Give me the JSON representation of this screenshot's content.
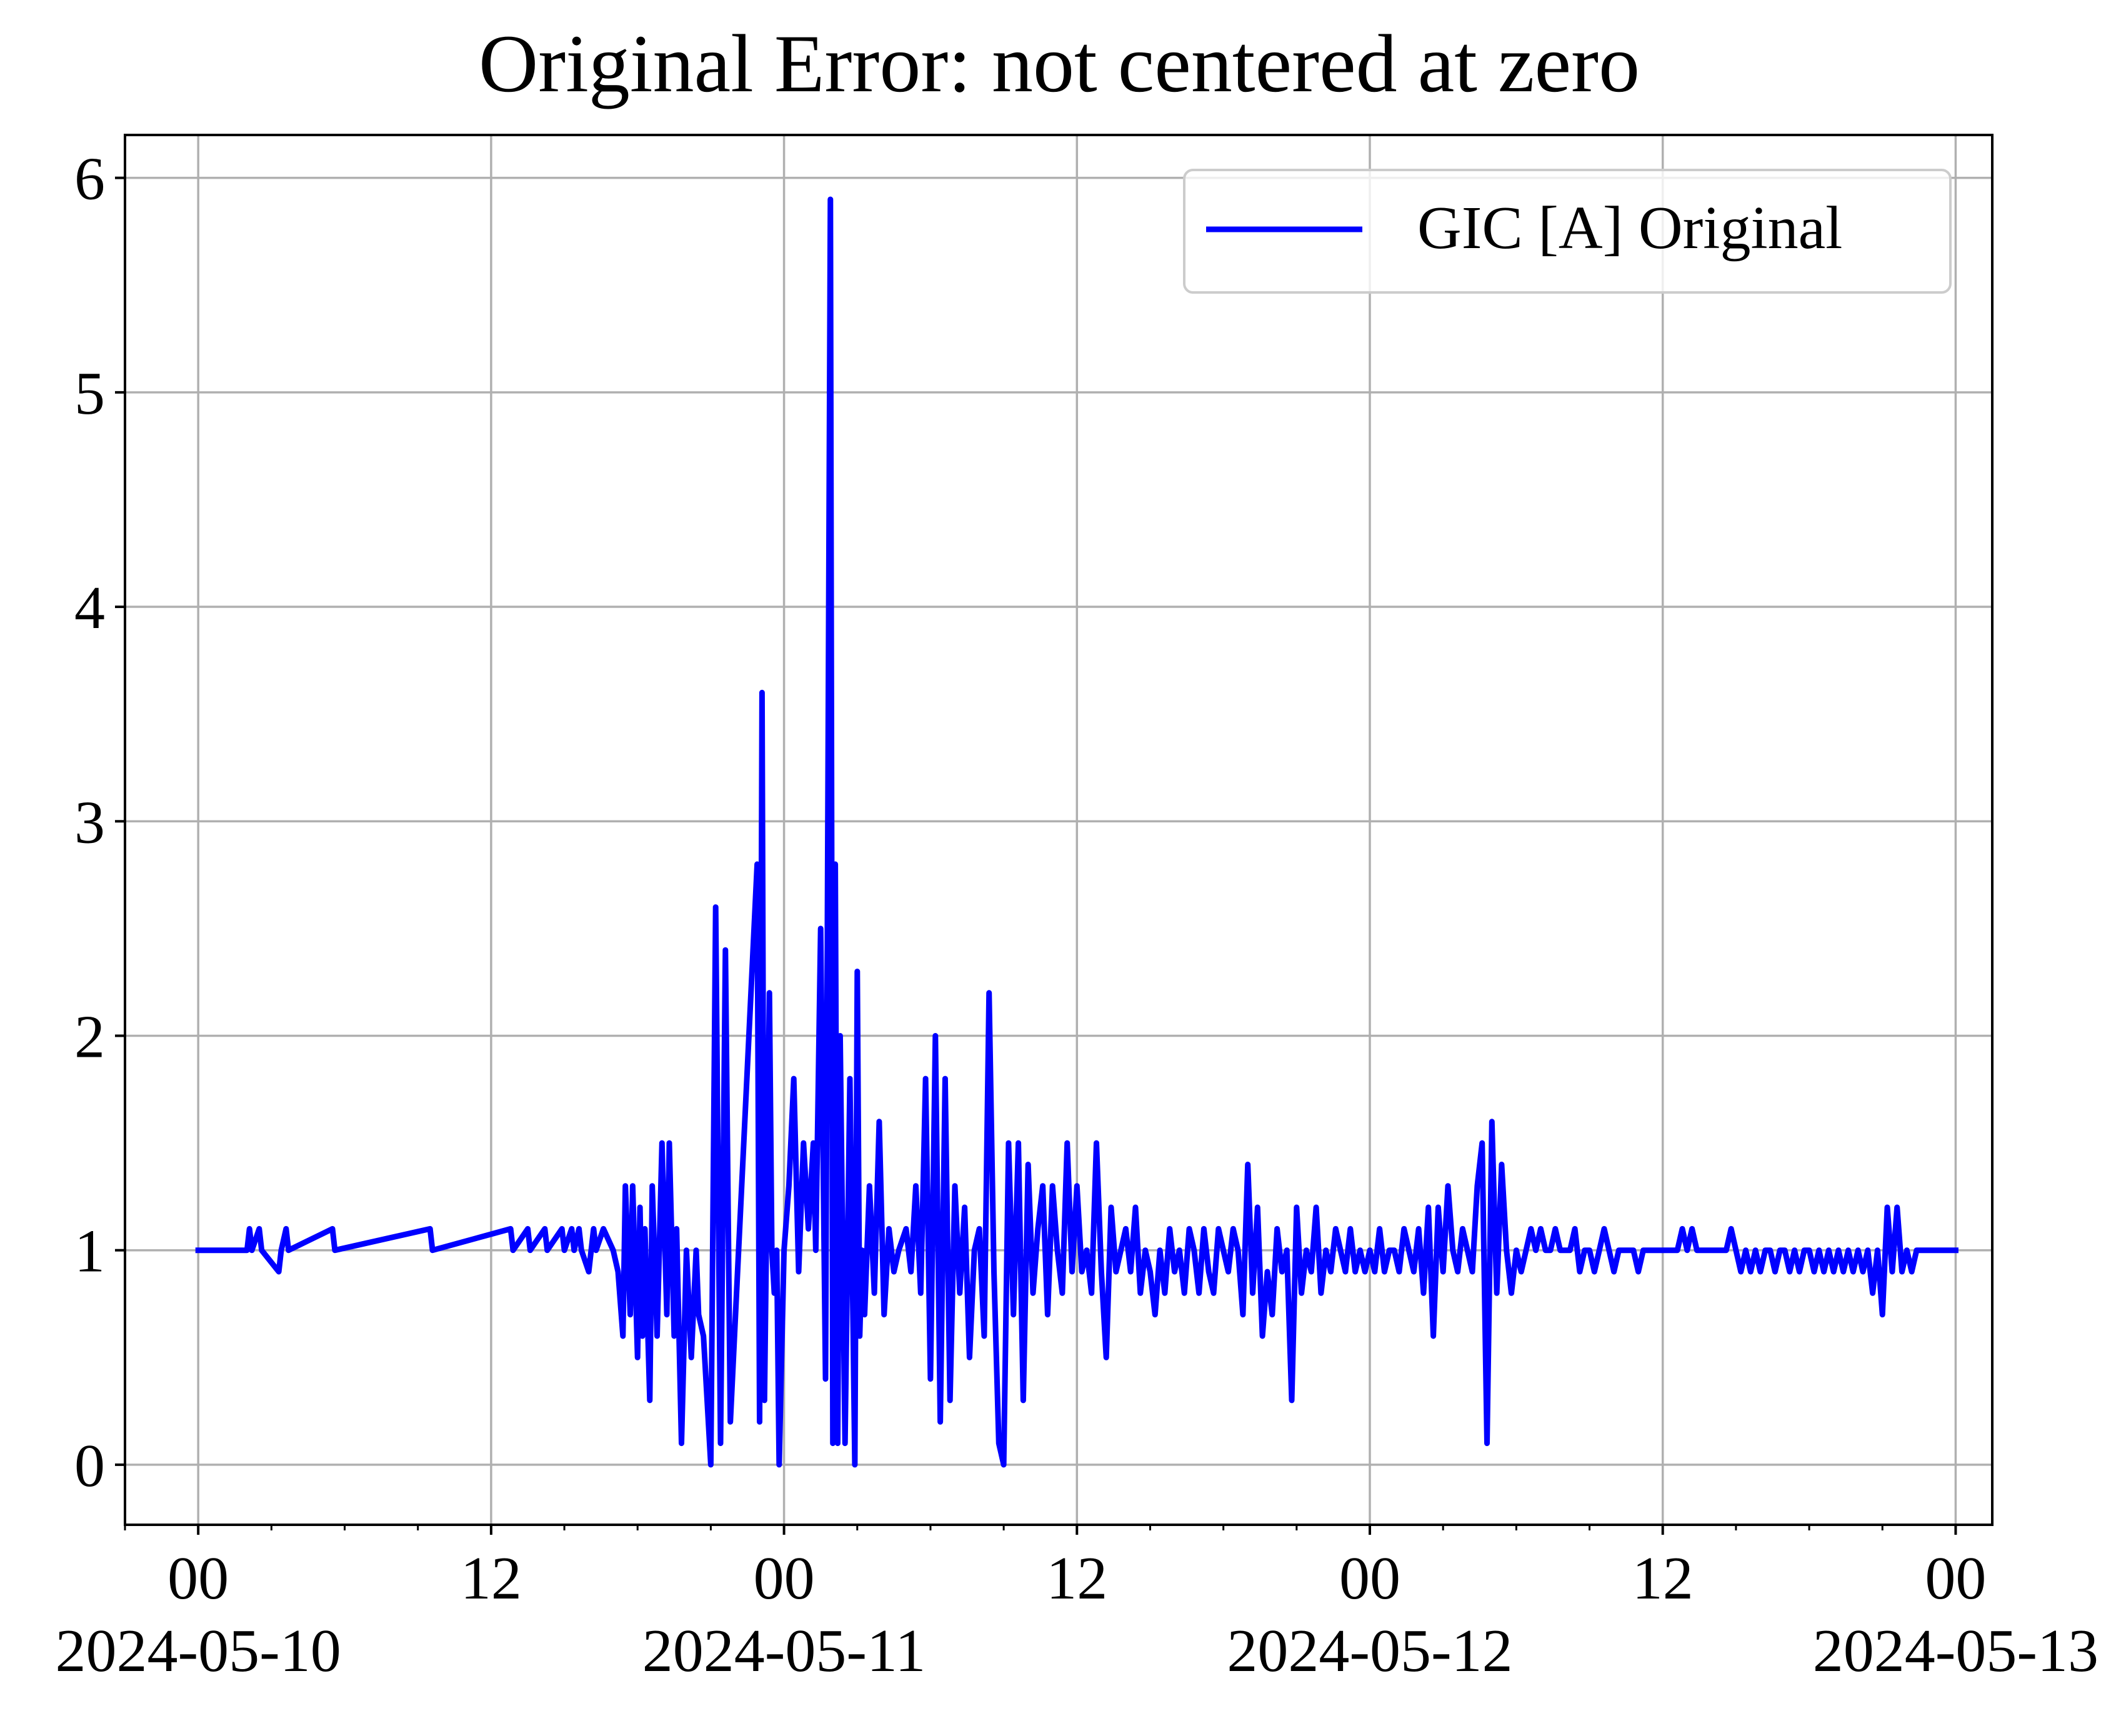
{
  "chart_data": {
    "type": "line",
    "title": "Original Error: not centered at zero",
    "xlabel": "",
    "ylabel": "",
    "xlim": [
      "2024-05-09T21:00:00",
      "2024-05-13T01:30:00"
    ],
    "ylim": [
      -0.28,
      6.2
    ],
    "x_major_ticks": [
      {
        "t": "2024-05-10T00:00:00",
        "line1": "00",
        "line2": "2024-05-10"
      },
      {
        "t": "2024-05-10T12:00:00",
        "line1": "12",
        "line2": ""
      },
      {
        "t": "2024-05-11T00:00:00",
        "line1": "00",
        "line2": "2024-05-11"
      },
      {
        "t": "2024-05-11T12:00:00",
        "line1": "12",
        "line2": ""
      },
      {
        "t": "2024-05-12T00:00:00",
        "line1": "00",
        "line2": "2024-05-12"
      },
      {
        "t": "2024-05-12T12:00:00",
        "line1": "12",
        "line2": ""
      },
      {
        "t": "2024-05-13T00:00:00",
        "line1": "00",
        "line2": "2024-05-13"
      }
    ],
    "x_minor_tick_hours": 3,
    "y_ticks": [
      {
        "v": 0,
        "label": "0"
      },
      {
        "v": 1,
        "label": "1"
      },
      {
        "v": 2,
        "label": "2"
      },
      {
        "v": 3,
        "label": "3"
      },
      {
        "v": 4,
        "label": "4"
      },
      {
        "v": 5,
        "label": "5"
      },
      {
        "v": 6,
        "label": "6"
      }
    ],
    "grid": true,
    "legend": {
      "position": "top-right"
    },
    "series": [
      {
        "name": "GIC [A] Original",
        "color": "#0000ff",
        "x": [
          "2024-05-10T00:00:00",
          "2024-05-10T02:00:00",
          "2024-05-10T02:06:00",
          "2024-05-10T02:12:00",
          "2024-05-10T02:30:00",
          "2024-05-10T02:36:00",
          "2024-05-10T03:18:00",
          "2024-05-10T03:24:00",
          "2024-05-10T03:36:00",
          "2024-05-10T03:42:00",
          "2024-05-10T05:30:00",
          "2024-05-10T05:36:00",
          "2024-05-10T09:30:00",
          "2024-05-10T09:36:00",
          "2024-05-10T12:48:00",
          "2024-05-10T12:54:00",
          "2024-05-10T13:30:00",
          "2024-05-10T13:36:00",
          "2024-05-10T14:12:00",
          "2024-05-10T14:18:00",
          "2024-05-10T14:54:00",
          "2024-05-10T15:00:00",
          "2024-05-10T15:18:00",
          "2024-05-10T15:24:00",
          "2024-05-10T15:36:00",
          "2024-05-10T15:42:00",
          "2024-05-10T16:00:00",
          "2024-05-10T16:12:00",
          "2024-05-10T16:18:00",
          "2024-05-10T16:36:00",
          "2024-05-10T17:00:00",
          "2024-05-10T17:12:00",
          "2024-05-10T17:24:00",
          "2024-05-10T17:30:00",
          "2024-05-10T17:42:00",
          "2024-05-10T17:48:00",
          "2024-05-10T18:00:00",
          "2024-05-10T18:06:00",
          "2024-05-10T18:12:00",
          "2024-05-10T18:18:00",
          "2024-05-10T18:30:00",
          "2024-05-10T18:36:00",
          "2024-05-10T18:48:00",
          "2024-05-10T19:00:00",
          "2024-05-10T19:12:00",
          "2024-05-10T19:18:00",
          "2024-05-10T19:30:00",
          "2024-05-10T19:36:00",
          "2024-05-10T19:48:00",
          "2024-05-10T20:00:00",
          "2024-05-10T20:12:00",
          "2024-05-10T20:24:00",
          "2024-05-10T20:30:00",
          "2024-05-10T20:42:00",
          "2024-05-10T21:00:00",
          "2024-05-10T21:12:00",
          "2024-05-10T21:24:00",
          "2024-05-10T21:36:00",
          "2024-05-10T21:48:00",
          "2024-05-10T22:54:00",
          "2024-05-10T23:00:00",
          "2024-05-10T23:06:00",
          "2024-05-10T23:12:00",
          "2024-05-10T23:24:00",
          "2024-05-10T23:30:00",
          "2024-05-10T23:36:00",
          "2024-05-10T23:42:00",
          "2024-05-10T23:48:00",
          "2024-05-11T00:00:00",
          "2024-05-11T00:12:00",
          "2024-05-11T00:24:00",
          "2024-05-11T00:36:00",
          "2024-05-11T00:48:00",
          "2024-05-11T01:00:00",
          "2024-05-11T01:12:00",
          "2024-05-11T01:18:00",
          "2024-05-11T01:30:00",
          "2024-05-11T01:42:00",
          "2024-05-11T01:54:00",
          "2024-05-11T02:00:00",
          "2024-05-11T02:06:00",
          "2024-05-11T02:12:00",
          "2024-05-11T02:18:00",
          "2024-05-11T02:30:00",
          "2024-05-11T02:42:00",
          "2024-05-11T02:54:00",
          "2024-05-11T03:00:00",
          "2024-05-11T03:06:00",
          "2024-05-11T03:12:00",
          "2024-05-11T03:18:00",
          "2024-05-11T03:30:00",
          "2024-05-11T03:42:00",
          "2024-05-11T03:54:00",
          "2024-05-11T04:06:00",
          "2024-05-11T04:18:00",
          "2024-05-11T04:30:00",
          "2024-05-11T04:42:00",
          "2024-05-11T05:00:00",
          "2024-05-11T05:12:00",
          "2024-05-11T05:24:00",
          "2024-05-11T05:36:00",
          "2024-05-11T05:48:00",
          "2024-05-11T06:00:00",
          "2024-05-11T06:12:00",
          "2024-05-11T06:24:00",
          "2024-05-11T06:36:00",
          "2024-05-11T06:48:00",
          "2024-05-11T07:00:00",
          "2024-05-11T07:12:00",
          "2024-05-11T07:24:00",
          "2024-05-11T07:36:00",
          "2024-05-11T07:48:00",
          "2024-05-11T08:00:00",
          "2024-05-11T08:12:00",
          "2024-05-11T08:24:00",
          "2024-05-11T08:36:00",
          "2024-05-11T08:48:00",
          "2024-05-11T09:00:00",
          "2024-05-11T09:12:00",
          "2024-05-11T09:24:00",
          "2024-05-11T09:36:00",
          "2024-05-11T09:48:00",
          "2024-05-11T10:00:00",
          "2024-05-11T10:12:00",
          "2024-05-11T10:24:00",
          "2024-05-11T10:36:00",
          "2024-05-11T10:48:00",
          "2024-05-11T11:00:00",
          "2024-05-11T11:12:00",
          "2024-05-11T11:24:00",
          "2024-05-11T11:36:00",
          "2024-05-11T11:48:00",
          "2024-05-11T12:00:00",
          "2024-05-11T12:12:00",
          "2024-05-11T12:24:00",
          "2024-05-11T12:36:00",
          "2024-05-11T12:48:00",
          "2024-05-11T13:00:00",
          "2024-05-11T13:12:00",
          "2024-05-11T13:24:00",
          "2024-05-11T13:36:00",
          "2024-05-11T13:48:00",
          "2024-05-11T14:00:00",
          "2024-05-11T14:12:00",
          "2024-05-11T14:24:00",
          "2024-05-11T14:36:00",
          "2024-05-11T14:48:00",
          "2024-05-11T15:00:00",
          "2024-05-11T15:12:00",
          "2024-05-11T15:24:00",
          "2024-05-11T15:36:00",
          "2024-05-11T15:48:00",
          "2024-05-11T16:00:00",
          "2024-05-11T16:12:00",
          "2024-05-11T16:24:00",
          "2024-05-11T16:36:00",
          "2024-05-11T16:48:00",
          "2024-05-11T17:00:00",
          "2024-05-11T17:12:00",
          "2024-05-11T17:24:00",
          "2024-05-11T17:36:00",
          "2024-05-11T17:48:00",
          "2024-05-11T18:00:00",
          "2024-05-11T18:12:00",
          "2024-05-11T18:24:00",
          "2024-05-11T18:36:00",
          "2024-05-11T18:48:00",
          "2024-05-11T19:00:00",
          "2024-05-11T19:12:00",
          "2024-05-11T19:24:00",
          "2024-05-11T19:36:00",
          "2024-05-11T19:48:00",
          "2024-05-11T20:00:00",
          "2024-05-11T20:12:00",
          "2024-05-11T20:24:00",
          "2024-05-11T20:36:00",
          "2024-05-11T20:48:00",
          "2024-05-11T21:00:00",
          "2024-05-11T21:12:00",
          "2024-05-11T21:24:00",
          "2024-05-11T21:36:00",
          "2024-05-11T21:48:00",
          "2024-05-11T22:00:00",
          "2024-05-11T22:12:00",
          "2024-05-11T22:24:00",
          "2024-05-11T22:36:00",
          "2024-05-11T22:48:00",
          "2024-05-11T23:00:00",
          "2024-05-11T23:12:00",
          "2024-05-11T23:24:00",
          "2024-05-11T23:36:00",
          "2024-05-11T23:48:00",
          "2024-05-12T00:00:00",
          "2024-05-12T00:12:00",
          "2024-05-12T00:24:00",
          "2024-05-12T00:36:00",
          "2024-05-12T00:48:00",
          "2024-05-12T01:00:00",
          "2024-05-12T01:12:00",
          "2024-05-12T01:24:00",
          "2024-05-12T01:36:00",
          "2024-05-12T01:48:00",
          "2024-05-12T02:00:00",
          "2024-05-12T02:12:00",
          "2024-05-12T02:24:00",
          "2024-05-12T02:36:00",
          "2024-05-12T02:48:00",
          "2024-05-12T03:00:00",
          "2024-05-12T03:12:00",
          "2024-05-12T03:24:00",
          "2024-05-12T03:36:00",
          "2024-05-12T03:48:00",
          "2024-05-12T04:00:00",
          "2024-05-12T04:12:00",
          "2024-05-12T04:24:00",
          "2024-05-12T04:36:00",
          "2024-05-12T04:48:00",
          "2024-05-12T05:00:00",
          "2024-05-12T05:12:00",
          "2024-05-12T05:24:00",
          "2024-05-12T05:36:00",
          "2024-05-12T05:48:00",
          "2024-05-12T06:00:00",
          "2024-05-12T06:12:00",
          "2024-05-12T06:24:00",
          "2024-05-12T06:36:00",
          "2024-05-12T06:48:00",
          "2024-05-12T07:00:00",
          "2024-05-12T07:12:00",
          "2024-05-12T07:24:00",
          "2024-05-12T07:36:00",
          "2024-05-12T07:48:00",
          "2024-05-12T08:00:00",
          "2024-05-12T08:12:00",
          "2024-05-12T08:24:00",
          "2024-05-12T08:36:00",
          "2024-05-12T08:48:00",
          "2024-05-12T09:00:00",
          "2024-05-12T09:12:00",
          "2024-05-12T09:24:00",
          "2024-05-12T09:36:00",
          "2024-05-12T09:48:00",
          "2024-05-12T10:00:00",
          "2024-05-12T10:12:00",
          "2024-05-12T10:24:00",
          "2024-05-12T10:36:00",
          "2024-05-12T10:48:00",
          "2024-05-12T11:00:00",
          "2024-05-12T11:12:00",
          "2024-05-12T11:24:00",
          "2024-05-12T11:36:00",
          "2024-05-12T11:48:00",
          "2024-05-12T12:00:00",
          "2024-05-12T12:12:00",
          "2024-05-12T12:24:00",
          "2024-05-12T12:36:00",
          "2024-05-12T12:48:00",
          "2024-05-12T13:00:00",
          "2024-05-12T13:12:00",
          "2024-05-12T13:24:00",
          "2024-05-12T13:36:00",
          "2024-05-12T13:48:00",
          "2024-05-12T14:00:00",
          "2024-05-12T14:12:00",
          "2024-05-12T14:24:00",
          "2024-05-12T14:36:00",
          "2024-05-12T14:48:00",
          "2024-05-12T15:00:00",
          "2024-05-12T15:12:00",
          "2024-05-12T15:24:00",
          "2024-05-12T15:36:00",
          "2024-05-12T15:48:00",
          "2024-05-12T16:00:00",
          "2024-05-12T16:12:00",
          "2024-05-12T16:24:00",
          "2024-05-12T16:36:00",
          "2024-05-12T16:48:00",
          "2024-05-12T17:00:00",
          "2024-05-12T17:12:00",
          "2024-05-12T17:24:00",
          "2024-05-12T17:36:00",
          "2024-05-12T17:48:00",
          "2024-05-12T18:00:00",
          "2024-05-12T18:12:00",
          "2024-05-12T18:24:00",
          "2024-05-12T18:36:00",
          "2024-05-12T18:48:00",
          "2024-05-12T19:00:00",
          "2024-05-12T19:12:00",
          "2024-05-12T19:24:00",
          "2024-05-12T19:36:00",
          "2024-05-12T19:48:00",
          "2024-05-12T20:00:00",
          "2024-05-12T20:12:00",
          "2024-05-12T20:24:00",
          "2024-05-12T20:36:00",
          "2024-05-12T20:48:00",
          "2024-05-12T21:00:00",
          "2024-05-12T21:12:00",
          "2024-05-12T21:24:00",
          "2024-05-12T21:36:00",
          "2024-05-12T21:48:00",
          "2024-05-12T22:00:00",
          "2024-05-12T22:12:00",
          "2024-05-12T22:24:00",
          "2024-05-12T22:36:00",
          "2024-05-12T22:48:00",
          "2024-05-12T23:00:00",
          "2024-05-12T23:12:00",
          "2024-05-12T23:24:00",
          "2024-05-12T23:36:00",
          "2024-05-12T23:48:00",
          "2024-05-13T00:00:00"
        ],
        "y": [
          1.0,
          1.0,
          1.1,
          1.0,
          1.1,
          1.0,
          0.9,
          1.0,
          1.1,
          1.0,
          1.1,
          1.0,
          1.1,
          1.0,
          1.1,
          1.0,
          1.1,
          1.0,
          1.1,
          1.0,
          1.1,
          1.0,
          1.1,
          1.0,
          1.1,
          1.0,
          0.9,
          1.1,
          1.0,
          1.1,
          1.0,
          0.9,
          0.6,
          1.3,
          0.7,
          1.3,
          0.5,
          1.2,
          0.6,
          1.1,
          0.3,
          1.3,
          0.6,
          1.5,
          0.7,
          1.5,
          0.6,
          1.1,
          0.1,
          1.0,
          0.5,
          1.0,
          0.7,
          0.6,
          0.0,
          2.6,
          0.1,
          2.4,
          0.2,
          2.8,
          0.2,
          3.6,
          0.3,
          2.2,
          1.0,
          0.8,
          1.0,
          0.0,
          1.0,
          1.3,
          1.8,
          0.9,
          1.5,
          1.1,
          1.5,
          1.0,
          2.5,
          0.4,
          5.9,
          0.1,
          2.8,
          0.1,
          2.0,
          0.1,
          1.8,
          0.0,
          2.3,
          0.6,
          1.0,
          0.7,
          1.3,
          0.8,
          1.6,
          0.7,
          1.1,
          0.9,
          1.0,
          1.1,
          0.9,
          1.3,
          0.8,
          1.8,
          0.4,
          2.0,
          0.2,
          1.8,
          0.3,
          1.3,
          0.8,
          1.2,
          0.5,
          1.0,
          1.1,
          0.6,
          2.2,
          0.9,
          0.1,
          0.0,
          1.5,
          0.7,
          1.5,
          0.3,
          1.4,
          0.8,
          1.1,
          1.3,
          0.7,
          1.3,
          1.0,
          0.8,
          1.5,
          0.9,
          1.3,
          0.9,
          1.0,
          0.8,
          1.5,
          0.9,
          0.5,
          1.2,
          0.9,
          1.0,
          1.1,
          0.9,
          1.2,
          0.8,
          1.0,
          0.9,
          0.7,
          1.0,
          0.8,
          1.1,
          0.9,
          1.0,
          0.8,
          1.1,
          1.0,
          0.8,
          1.1,
          0.9,
          0.8,
          1.1,
          1.0,
          0.9,
          1.1,
          1.0,
          0.7,
          1.4,
          0.8,
          1.2,
          0.6,
          0.9,
          0.7,
          1.1,
          0.9,
          1.0,
          0.3,
          1.2,
          0.8,
          1.0,
          0.9,
          1.2,
          0.8,
          1.0,
          0.9,
          1.1,
          1.0,
          0.9,
          1.1,
          0.9,
          1.0,
          0.9,
          1.0,
          0.9,
          1.1,
          0.9,
          1.0,
          1.0,
          0.9,
          1.1,
          1.0,
          0.9,
          1.1,
          0.8,
          1.2,
          0.6,
          1.2,
          0.9,
          1.3,
          1.0,
          0.9,
          1.1,
          1.0,
          0.9,
          1.3,
          1.5,
          0.1,
          1.6,
          0.8,
          1.4,
          1.0,
          0.8,
          1.0,
          0.9,
          1.0,
          1.1,
          1.0,
          1.1,
          1.0,
          1.0,
          1.1,
          1.0,
          1.0,
          1.0,
          1.1,
          0.9,
          1.0,
          1.0,
          0.9,
          1.0,
          1.1,
          1.0,
          0.9,
          1.0,
          1.0,
          1.0,
          1.0,
          0.9,
          1.0,
          1.0,
          1.0,
          1.0,
          1.0,
          1.0,
          1.0,
          1.0,
          1.1,
          1.0,
          1.1,
          1.0,
          1.0,
          1.0,
          1.0,
          1.0,
          1.0,
          1.0,
          1.1,
          1.0,
          0.9,
          1.0,
          0.9,
          1.0,
          0.9,
          1.0,
          1.0,
          0.9,
          1.0,
          1.0,
          0.9,
          1.0,
          0.9,
          1.0,
          1.0,
          0.9,
          1.0,
          0.9,
          1.0,
          0.9,
          1.0,
          0.9,
          1.0,
          0.9,
          1.0,
          0.9,
          1.0,
          0.8,
          1.0,
          0.7,
          1.2,
          0.9,
          1.2,
          0.9,
          1.0,
          0.9,
          1.0,
          1.0,
          1.0,
          1.0,
          1.0,
          1.0,
          1.0,
          1.0,
          1.0
        ]
      }
    ]
  }
}
